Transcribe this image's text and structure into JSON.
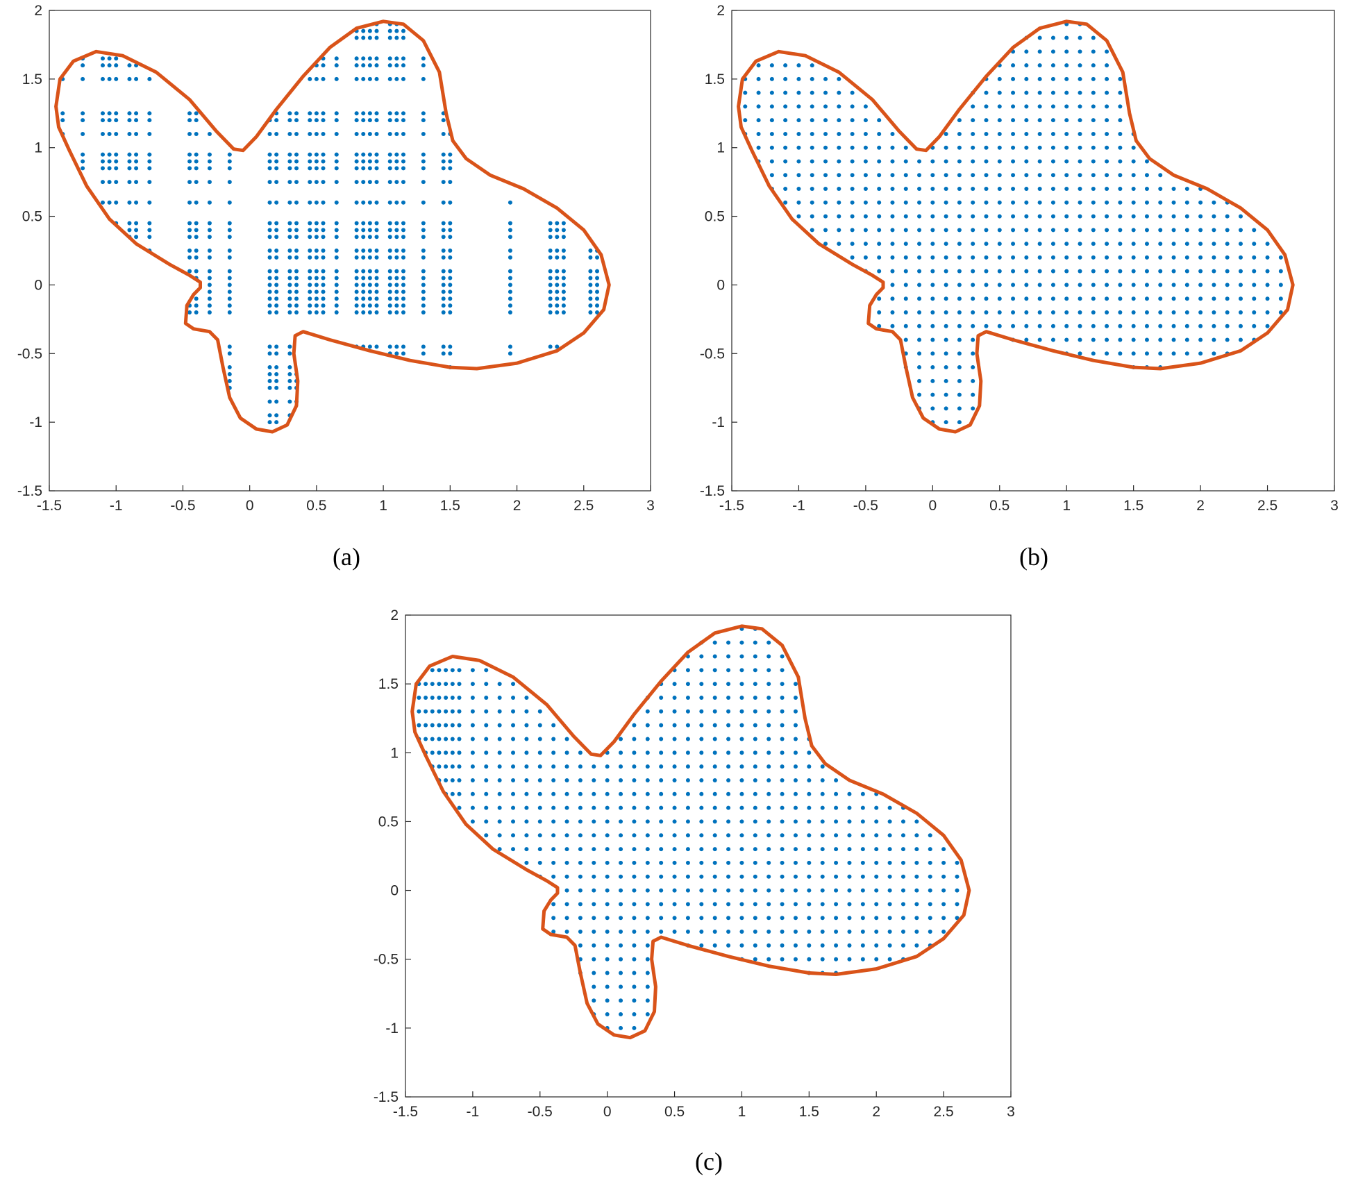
{
  "chart_data": [
    {
      "type": "scatter",
      "caption": "(a)",
      "xlim": [
        -1.5,
        3
      ],
      "ylim": [
        -1.5,
        2
      ],
      "xticks": [
        -1.5,
        -1,
        -0.5,
        0,
        0.5,
        1,
        1.5,
        2,
        2.5,
        3
      ],
      "yticks": [
        -1.5,
        -1,
        -0.5,
        0,
        0.5,
        1,
        1.5,
        2
      ],
      "boundary": {
        "color": "#d95319",
        "x": [
          -1.45,
          -1.42,
          -1.32,
          -1.15,
          -0.95,
          -0.7,
          -0.45,
          -0.25,
          -0.12,
          -0.05,
          0.05,
          0.2,
          0.4,
          0.6,
          0.8,
          1.0,
          1.15,
          1.3,
          1.42,
          1.47,
          1.52,
          1.62,
          1.8,
          2.05,
          2.3,
          2.5,
          2.63,
          2.69,
          2.65,
          2.5,
          2.3,
          2.0,
          1.7,
          1.5,
          1.2,
          0.9,
          0.6,
          0.4,
          0.34,
          0.33,
          0.36,
          0.35,
          0.28,
          0.17,
          0.05,
          -0.07,
          -0.15,
          -0.2,
          -0.24,
          -0.3,
          -0.42,
          -0.48,
          -0.47,
          -0.42,
          -0.37,
          -0.37,
          -0.45,
          -0.6,
          -0.85,
          -1.05,
          -1.22,
          -1.35,
          -1.43
        ],
        "y": [
          1.3,
          1.5,
          1.63,
          1.7,
          1.67,
          1.55,
          1.35,
          1.12,
          0.99,
          0.98,
          1.08,
          1.28,
          1.52,
          1.73,
          1.87,
          1.92,
          1.9,
          1.78,
          1.55,
          1.25,
          1.05,
          0.92,
          0.8,
          0.7,
          0.56,
          0.4,
          0.22,
          0.0,
          -0.18,
          -0.35,
          -0.48,
          -0.57,
          -0.61,
          -0.6,
          -0.55,
          -0.48,
          -0.4,
          -0.34,
          -0.37,
          -0.5,
          -0.7,
          -0.88,
          -1.02,
          -1.07,
          -1.05,
          -0.97,
          -0.82,
          -0.6,
          -0.4,
          -0.34,
          -0.32,
          -0.28,
          -0.15,
          -0.07,
          -0.02,
          0.02,
          0.07,
          0.15,
          0.3,
          0.48,
          0.72,
          0.98,
          1.15
        ]
      },
      "points": {
        "color": "#0072bd",
        "x_grid": [
          -1.4,
          -1.25,
          -1.1,
          -1.05,
          -1,
          -0.9,
          -0.85,
          -0.75,
          -0.45,
          -0.4,
          -0.3,
          -0.15,
          0.15,
          0.2,
          0.3,
          0.35,
          0.45,
          0.5,
          0.55,
          0.65,
          0.8,
          0.85,
          0.9,
          0.95,
          1.05,
          1.1,
          1.15,
          1.3,
          1.45,
          1.5,
          1.95,
          2.25,
          2.3,
          2.35,
          2.55,
          2.6
        ],
        "y_grid": [
          -1,
          -0.95,
          -0.85,
          -0.75,
          -0.7,
          -0.65,
          -0.6,
          -0.5,
          -0.45,
          -0.2,
          -0.15,
          -0.1,
          -0.05,
          0,
          0.05,
          0.1,
          0.2,
          0.25,
          0.35,
          0.4,
          0.45,
          0.6,
          0.75,
          0.85,
          0.9,
          0.95,
          1.1,
          1.2,
          1.25,
          1.5,
          1.6,
          1.65,
          1.8,
          1.85,
          1.9
        ]
      }
    },
    {
      "type": "scatter",
      "caption": "(b)",
      "xlim": [
        -1.5,
        3
      ],
      "ylim": [
        -1.5,
        2
      ],
      "xticks": [
        -1.5,
        -1,
        -0.5,
        0,
        0.5,
        1,
        1.5,
        2,
        2.5,
        3
      ],
      "yticks": [
        -1.5,
        -1,
        -0.5,
        0,
        0.5,
        1,
        1.5,
        2
      ],
      "boundary": {
        "color": "#d95319",
        "x": [
          -1.45,
          -1.42,
          -1.32,
          -1.15,
          -0.95,
          -0.7,
          -0.45,
          -0.25,
          -0.12,
          -0.05,
          0.05,
          0.2,
          0.4,
          0.6,
          0.8,
          1.0,
          1.15,
          1.3,
          1.42,
          1.47,
          1.52,
          1.62,
          1.8,
          2.05,
          2.3,
          2.5,
          2.63,
          2.69,
          2.65,
          2.5,
          2.3,
          2.0,
          1.7,
          1.5,
          1.2,
          0.9,
          0.6,
          0.4,
          0.34,
          0.33,
          0.36,
          0.35,
          0.28,
          0.17,
          0.05,
          -0.07,
          -0.15,
          -0.2,
          -0.24,
          -0.3,
          -0.42,
          -0.48,
          -0.47,
          -0.42,
          -0.37,
          -0.37,
          -0.45,
          -0.6,
          -0.85,
          -1.05,
          -1.22,
          -1.35,
          -1.43
        ],
        "y": [
          1.3,
          1.5,
          1.63,
          1.7,
          1.67,
          1.55,
          1.35,
          1.12,
          0.99,
          0.98,
          1.08,
          1.28,
          1.52,
          1.73,
          1.87,
          1.92,
          1.9,
          1.78,
          1.55,
          1.25,
          1.05,
          0.92,
          0.8,
          0.7,
          0.56,
          0.4,
          0.22,
          0.0,
          -0.18,
          -0.35,
          -0.48,
          -0.57,
          -0.61,
          -0.6,
          -0.55,
          -0.48,
          -0.4,
          -0.34,
          -0.37,
          -0.5,
          -0.7,
          -0.88,
          -1.02,
          -1.07,
          -1.05,
          -0.97,
          -0.82,
          -0.6,
          -0.4,
          -0.34,
          -0.32,
          -0.28,
          -0.15,
          -0.07,
          -0.02,
          0.02,
          0.07,
          0.15,
          0.3,
          0.48,
          0.72,
          0.98,
          1.15
        ]
      },
      "points": {
        "color": "#0072bd",
        "x_grid": [
          -1.4,
          -1.3,
          -1.2,
          -1.1,
          -1,
          -0.9,
          -0.8,
          -0.7,
          -0.6,
          -0.5,
          -0.4,
          -0.3,
          -0.2,
          -0.1,
          0,
          0.1,
          0.2,
          0.3,
          0.4,
          0.5,
          0.6,
          0.7,
          0.8,
          0.9,
          1,
          1.1,
          1.2,
          1.3,
          1.4,
          1.5,
          1.6,
          1.7,
          1.8,
          1.9,
          2,
          2.1,
          2.2,
          2.3,
          2.4,
          2.5,
          2.6
        ],
        "y_grid": [
          -1,
          -0.9,
          -0.8,
          -0.7,
          -0.6,
          -0.5,
          -0.4,
          -0.3,
          -0.2,
          -0.1,
          0,
          0.1,
          0.2,
          0.3,
          0.4,
          0.5,
          0.6,
          0.7,
          0.8,
          0.9,
          1,
          1.1,
          1.2,
          1.3,
          1.4,
          1.5,
          1.6,
          1.7,
          1.8,
          1.9
        ]
      }
    },
    {
      "type": "scatter",
      "caption": "(c)",
      "xlim": [
        -1.5,
        3
      ],
      "ylim": [
        -1.5,
        2
      ],
      "xticks": [
        -1.5,
        -1,
        -0.5,
        0,
        0.5,
        1,
        1.5,
        2,
        2.5,
        3
      ],
      "yticks": [
        -1.5,
        -1,
        -0.5,
        0,
        0.5,
        1,
        1.5,
        2
      ],
      "boundary": {
        "color": "#d95319",
        "x": [
          -1.45,
          -1.42,
          -1.32,
          -1.15,
          -0.95,
          -0.7,
          -0.45,
          -0.25,
          -0.12,
          -0.05,
          0.05,
          0.2,
          0.4,
          0.6,
          0.8,
          1.0,
          1.15,
          1.3,
          1.42,
          1.47,
          1.52,
          1.62,
          1.8,
          2.05,
          2.3,
          2.5,
          2.63,
          2.69,
          2.65,
          2.5,
          2.3,
          2.0,
          1.7,
          1.5,
          1.2,
          0.9,
          0.6,
          0.4,
          0.34,
          0.33,
          0.36,
          0.35,
          0.28,
          0.17,
          0.05,
          -0.07,
          -0.15,
          -0.2,
          -0.24,
          -0.3,
          -0.42,
          -0.48,
          -0.47,
          -0.42,
          -0.37,
          -0.37,
          -0.45,
          -0.6,
          -0.85,
          -1.05,
          -1.22,
          -1.35,
          -1.43
        ],
        "y": [
          1.3,
          1.5,
          1.63,
          1.7,
          1.67,
          1.55,
          1.35,
          1.12,
          0.99,
          0.98,
          1.08,
          1.28,
          1.52,
          1.73,
          1.87,
          1.92,
          1.9,
          1.78,
          1.55,
          1.25,
          1.05,
          0.92,
          0.8,
          0.7,
          0.56,
          0.4,
          0.22,
          0.0,
          -0.18,
          -0.35,
          -0.48,
          -0.57,
          -0.61,
          -0.6,
          -0.55,
          -0.48,
          -0.4,
          -0.34,
          -0.37,
          -0.5,
          -0.7,
          -0.88,
          -1.02,
          -1.07,
          -1.05,
          -0.97,
          -0.82,
          -0.6,
          -0.4,
          -0.34,
          -0.32,
          -0.28,
          -0.15,
          -0.07,
          -0.02,
          0.02,
          0.07,
          0.15,
          0.3,
          0.48,
          0.72,
          0.98,
          1.15
        ]
      },
      "points": {
        "color": "#0072bd",
        "x_grid": [
          -1.4,
          -1.35,
          -1.3,
          -1.25,
          -1.2,
          -1.15,
          -1.1,
          -1,
          -0.9,
          -0.8,
          -0.7,
          -0.6,
          -0.5,
          -0.4,
          -0.3,
          -0.2,
          -0.1,
          0,
          0.1,
          0.2,
          0.3,
          0.4,
          0.5,
          0.6,
          0.7,
          0.8,
          0.9,
          1,
          1.1,
          1.2,
          1.3,
          1.4,
          1.5,
          1.6,
          1.7,
          1.8,
          1.9,
          2,
          2.1,
          2.2,
          2.3,
          2.4,
          2.5,
          2.6
        ],
        "y_grid": [
          -1,
          -0.9,
          -0.8,
          -0.7,
          -0.6,
          -0.5,
          -0.4,
          -0.3,
          -0.2,
          -0.1,
          0,
          0.1,
          0.2,
          0.3,
          0.4,
          0.5,
          0.6,
          0.7,
          0.8,
          0.9,
          1,
          1.1,
          1.2,
          1.3,
          1.4,
          1.5,
          1.6,
          1.7,
          1.8,
          1.9
        ]
      }
    }
  ]
}
